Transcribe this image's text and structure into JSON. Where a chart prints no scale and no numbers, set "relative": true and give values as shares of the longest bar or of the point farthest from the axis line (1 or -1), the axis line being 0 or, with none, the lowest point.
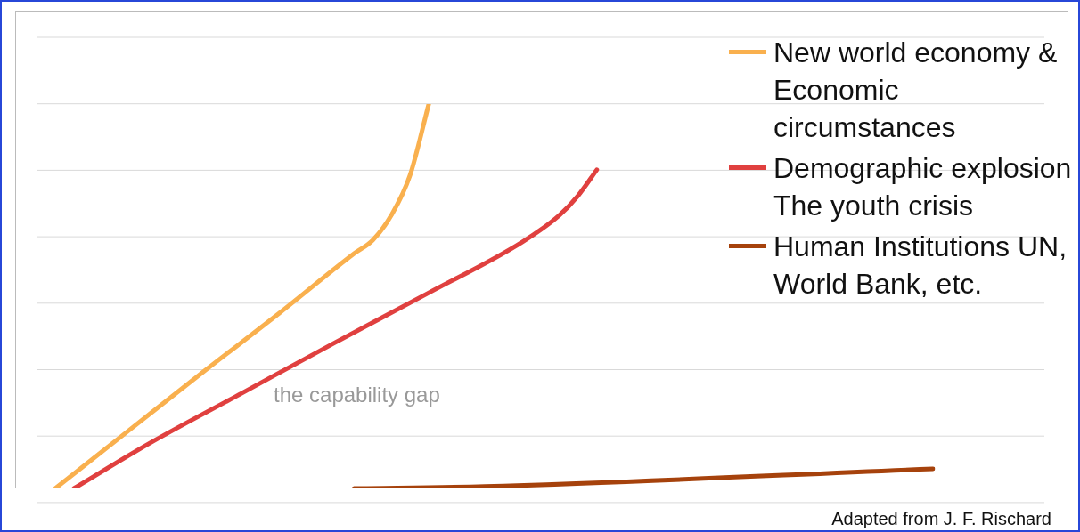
{
  "chart_data": {
    "type": "line",
    "relative": true,
    "grid": "y",
    "legend": "top right",
    "marker": "none",
    "categories": [
      null,
      null,
      null,
      null,
      null,
      null,
      null,
      null,
      null,
      null,
      null,
      null,
      null,
      null,
      null,
      null,
      null,
      null,
      null,
      null,
      null,
      null,
      null,
      null,
      null,
      null,
      null,
      null,
      null,
      null,
      null,
      null,
      null,
      null,
      null,
      null,
      null,
      null,
      null,
      null,
      null,
      null,
      null,
      null,
      null,
      null,
      null,
      null
    ],
    "series": [
      {
        "name": "New world economy & Economic circumstances",
        "color": "#f9b04e",
        "values": [
          0,
          null,
          null,
          null,
          0.153,
          null,
          null,
          null,
          0.306,
          null,
          null,
          null,
          0.456,
          null,
          null,
          null,
          0.611,
          0.646,
          0.711,
          0.815,
          1,
          null,
          null,
          null,
          null,
          null,
          null,
          null,
          null,
          null,
          null,
          null,
          null,
          null,
          null,
          null,
          null,
          null,
          null,
          null,
          null,
          null,
          null,
          null,
          null,
          null,
          null,
          null
        ]
      },
      {
        "name": "Demographic explosion The youth crisis",
        "color": "#e0403f",
        "values": [
          null,
          0,
          null,
          null,
          null,
          0.116,
          null,
          null,
          null,
          null,
          0.248,
          null,
          null,
          null,
          null,
          0.38,
          null,
          null,
          null,
          null,
          0.509,
          null,
          null,
          null,
          null,
          0.641,
          null,
          0.711,
          0.762,
          0.829,
          null,
          null,
          null,
          null,
          null,
          null,
          null,
          null,
          null,
          null,
          null,
          null,
          null,
          null,
          null,
          null,
          null,
          null
        ]
      },
      {
        "name": "Human Institutions UN, World Bank, etc.",
        "color": "#a6420c",
        "values": [
          null,
          null,
          null,
          null,
          null,
          null,
          null,
          null,
          null,
          null,
          null,
          null,
          null,
          null,
          null,
          null,
          0,
          null,
          null,
          null,
          null,
          null,
          null,
          0.005,
          null,
          null,
          null,
          null,
          null,
          null,
          null,
          null,
          null,
          null,
          null,
          null,
          null,
          null,
          null,
          null,
          null,
          null,
          null,
          null,
          null,
          null,
          null,
          0.051
        ]
      }
    ],
    "annotations": [
      "the capability gap",
      "Adapted from J. F. Rischard"
    ]
  }
}
